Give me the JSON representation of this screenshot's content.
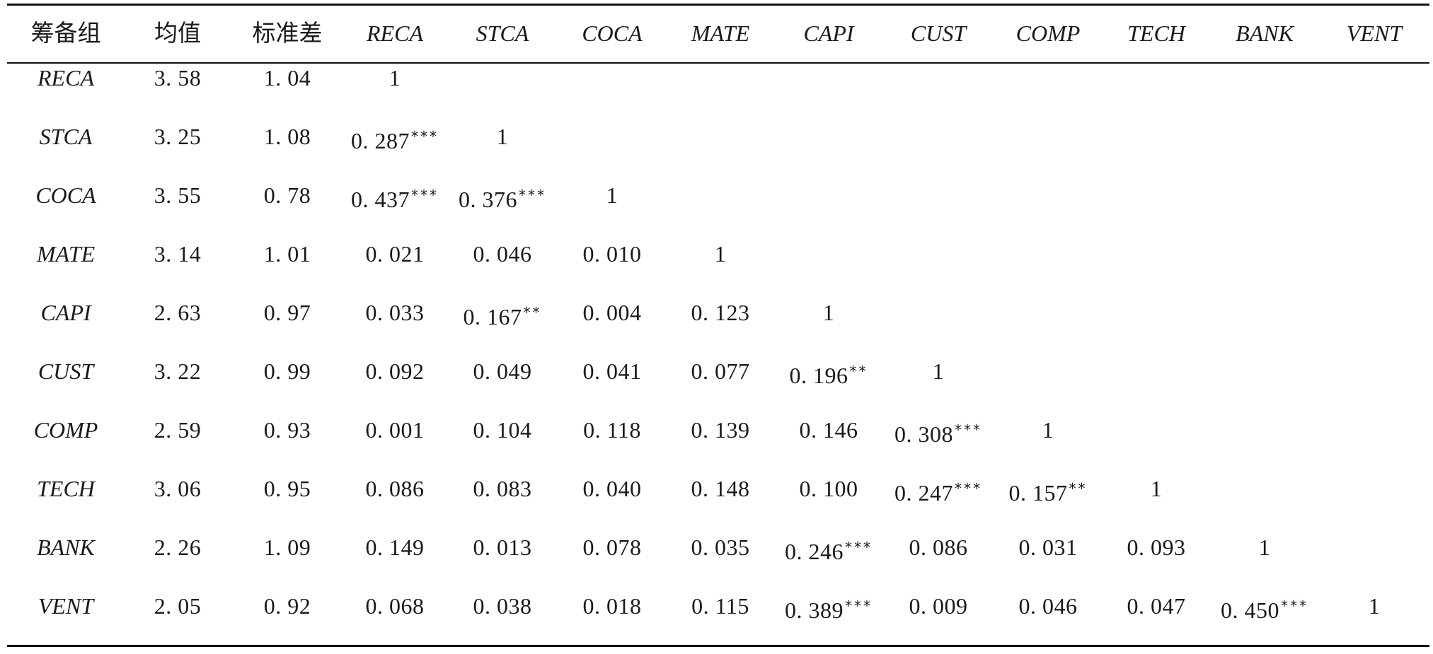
{
  "table": {
    "headers": [
      "筹备组",
      "均值",
      "标准差",
      "RECA",
      "STCA",
      "COCA",
      "MATE",
      "CAPI",
      "CUST",
      "COMP",
      "TECH",
      "BANK",
      "VENT"
    ],
    "rows": [
      {
        "label": "RECA",
        "mean": "3. 58",
        "sd": "1. 04",
        "cells": [
          [
            "1",
            ""
          ]
        ]
      },
      {
        "label": "STCA",
        "mean": "3. 25",
        "sd": "1. 08",
        "cells": [
          [
            "0. 287",
            "***"
          ],
          [
            "1",
            ""
          ]
        ]
      },
      {
        "label": "COCA",
        "mean": "3. 55",
        "sd": "0. 78",
        "cells": [
          [
            "0. 437",
            "***"
          ],
          [
            "0. 376",
            "***"
          ],
          [
            "1",
            ""
          ]
        ]
      },
      {
        "label": "MATE",
        "mean": "3. 14",
        "sd": "1. 01",
        "cells": [
          [
            "0. 021",
            ""
          ],
          [
            "0. 046",
            ""
          ],
          [
            "0. 010",
            ""
          ],
          [
            "1",
            ""
          ]
        ]
      },
      {
        "label": "CAPI",
        "mean": "2. 63",
        "sd": "0. 97",
        "cells": [
          [
            "0. 033",
            ""
          ],
          [
            "0. 167",
            "**"
          ],
          [
            "0. 004",
            ""
          ],
          [
            "0. 123",
            ""
          ],
          [
            "1",
            ""
          ]
        ]
      },
      {
        "label": "CUST",
        "mean": "3. 22",
        "sd": "0. 99",
        "cells": [
          [
            "0. 092",
            ""
          ],
          [
            "0. 049",
            ""
          ],
          [
            "0. 041",
            ""
          ],
          [
            "0. 077",
            ""
          ],
          [
            "0. 196",
            "**"
          ],
          [
            "1",
            ""
          ]
        ]
      },
      {
        "label": "COMP",
        "mean": "2. 59",
        "sd": "0. 93",
        "cells": [
          [
            "0. 001",
            ""
          ],
          [
            "0. 104",
            ""
          ],
          [
            "0. 118",
            ""
          ],
          [
            "0. 139",
            ""
          ],
          [
            "0. 146",
            ""
          ],
          [
            "0. 308",
            "***"
          ],
          [
            "1",
            ""
          ]
        ]
      },
      {
        "label": "TECH",
        "mean": "3. 06",
        "sd": "0. 95",
        "cells": [
          [
            "0. 086",
            ""
          ],
          [
            "0. 083",
            ""
          ],
          [
            "0. 040",
            ""
          ],
          [
            "0. 148",
            ""
          ],
          [
            "0. 100",
            ""
          ],
          [
            "0. 247",
            "***"
          ],
          [
            "0. 157",
            "**"
          ],
          [
            "1",
            ""
          ]
        ]
      },
      {
        "label": "BANK",
        "mean": "2. 26",
        "sd": "1. 09",
        "cells": [
          [
            "0. 149",
            ""
          ],
          [
            "0. 013",
            ""
          ],
          [
            "0. 078",
            ""
          ],
          [
            "0. 035",
            ""
          ],
          [
            "0. 246",
            "***"
          ],
          [
            "0. 086",
            ""
          ],
          [
            "0. 031",
            ""
          ],
          [
            "0. 093",
            ""
          ],
          [
            "1",
            ""
          ]
        ]
      },
      {
        "label": "VENT",
        "mean": "2. 05",
        "sd": "0. 92",
        "cells": [
          [
            "0. 068",
            ""
          ],
          [
            "0. 038",
            ""
          ],
          [
            "0. 018",
            ""
          ],
          [
            "0. 115",
            ""
          ],
          [
            "0. 389",
            "***"
          ],
          [
            "0. 009",
            ""
          ],
          [
            "0. 046",
            ""
          ],
          [
            "0. 047",
            ""
          ],
          [
            "0. 450",
            "***"
          ],
          [
            "1",
            ""
          ]
        ]
      }
    ]
  }
}
